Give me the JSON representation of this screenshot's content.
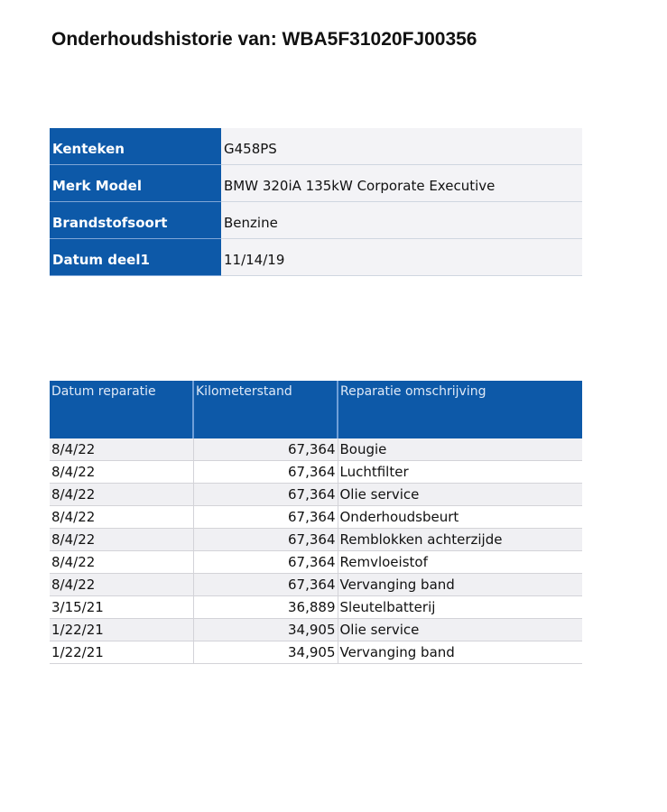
{
  "title": "Onderhoudshistorie van: WBA5F31020FJ00356",
  "colors": {
    "header_blue": "#0d59a8",
    "row_gray": "#f0f0f3"
  },
  "vehicle": [
    {
      "label": "Kenteken",
      "value": "G458PS"
    },
    {
      "label": "Merk Model",
      "value": "BMW  320iA 135kW Corporate Executive"
    },
    {
      "label": "Brandstofsoort",
      "value": "Benzine"
    },
    {
      "label": "Datum deel1",
      "value": "11/14/19"
    }
  ],
  "repairs": {
    "headers": [
      "Datum reparatie",
      "Kilometerstand",
      "Reparatie omschrijving"
    ],
    "rows": [
      [
        "8/4/22",
        "67,364",
        "Bougie"
      ],
      [
        "8/4/22",
        "67,364",
        "Luchtfilter"
      ],
      [
        "8/4/22",
        "67,364",
        "Olie service"
      ],
      [
        "8/4/22",
        "67,364",
        "Onderhoudsbeurt"
      ],
      [
        "8/4/22",
        "67,364",
        "Remblokken achterzijde"
      ],
      [
        "8/4/22",
        "67,364",
        "Remvloeistof"
      ],
      [
        "8/4/22",
        "67,364",
        "Vervanging band"
      ],
      [
        "3/15/21",
        "36,889",
        "Sleutelbatterij"
      ],
      [
        "1/22/21",
        "34,905",
        "Olie service"
      ],
      [
        "1/22/21",
        "34,905",
        "Vervanging band"
      ]
    ]
  }
}
